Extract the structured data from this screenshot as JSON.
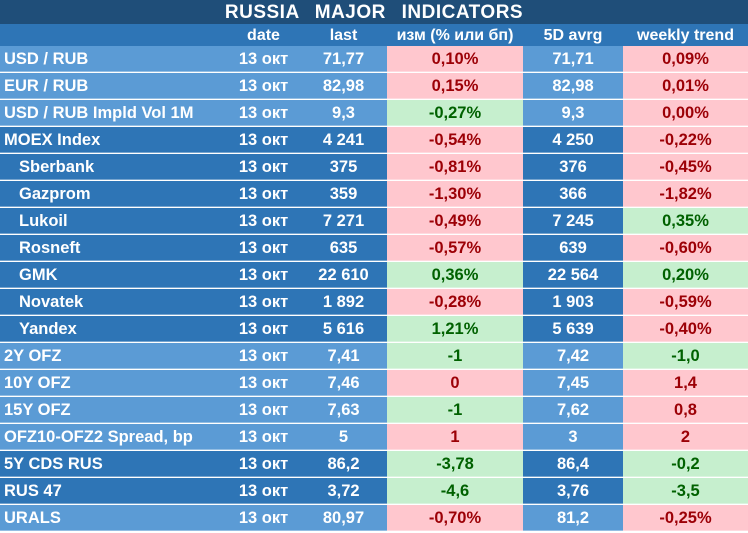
{
  "title": "RUSSIA MAJOR INDICATORS",
  "headers": [
    "date",
    "last",
    "изм (% или бп)",
    "5D avrg",
    "weekly trend"
  ],
  "colors": {
    "title_bg": "#1f4e79",
    "header_bg": "#2e75b6",
    "light_blue": "#5b9bd5",
    "dark_blue": "#2e75b6",
    "positive_bg": "#c6efce",
    "positive_text": "#006100",
    "negative_bg": "#ffc7ce",
    "negative_text": "#9c0006"
  },
  "groups": [
    {
      "shade": "light",
      "rows": [
        {
          "label": "USD / RUB",
          "date": "13 окт",
          "last": "71,77",
          "change": "0,10%",
          "change_sign": "neg",
          "avg": "71,71",
          "trend": "0,09%",
          "trend_sign": "neg"
        },
        {
          "label": "EUR / RUB",
          "date": "13 окт",
          "last": "82,98",
          "change": "0,15%",
          "change_sign": "neg",
          "avg": "82,98",
          "trend": "0,01%",
          "trend_sign": "neg"
        },
        {
          "label": "USD / RUB Impld Vol 1M",
          "date": "13 окт",
          "last": "9,3",
          "change": "-0,27%",
          "change_sign": "pos",
          "avg": "9,3",
          "trend": "0,00%",
          "trend_sign": "neg"
        }
      ]
    },
    {
      "shade": "dark",
      "rows": [
        {
          "label": "MOEX Index",
          "date": "13 окт",
          "last": "4 241",
          "change": "-0,54%",
          "change_sign": "neg",
          "avg": "4 250",
          "trend": "-0,22%",
          "trend_sign": "neg"
        },
        {
          "label": "Sberbank",
          "indent": true,
          "date": "13 окт",
          "last": "375",
          "change": "-0,81%",
          "change_sign": "neg",
          "avg": "376",
          "trend": "-0,45%",
          "trend_sign": "neg"
        },
        {
          "label": "Gazprom",
          "indent": true,
          "date": "13 окт",
          "last": "359",
          "change": "-1,30%",
          "change_sign": "neg",
          "avg": "366",
          "trend": "-1,82%",
          "trend_sign": "neg"
        },
        {
          "label": "Lukoil",
          "indent": true,
          "date": "13 окт",
          "last": "7 271",
          "change": "-0,49%",
          "change_sign": "neg",
          "avg": "7 245",
          "trend": "0,35%",
          "trend_sign": "pos"
        },
        {
          "label": "Rosneft",
          "indent": true,
          "date": "13 окт",
          "last": "635",
          "change": "-0,57%",
          "change_sign": "neg",
          "avg": "639",
          "trend": "-0,60%",
          "trend_sign": "neg"
        },
        {
          "label": "GMK",
          "indent": true,
          "date": "13 окт",
          "last": "22 610",
          "change": "0,36%",
          "change_sign": "pos",
          "avg": "22 564",
          "trend": "0,20%",
          "trend_sign": "pos"
        },
        {
          "label": "Novatek",
          "indent": true,
          "date": "13 окт",
          "last": "1 892",
          "change": "-0,28%",
          "change_sign": "neg",
          "avg": "1 903",
          "trend": "-0,59%",
          "trend_sign": "neg"
        },
        {
          "label": "Yandex",
          "indent": true,
          "date": "13 окт",
          "last": "5 616",
          "change": "1,21%",
          "change_sign": "pos",
          "avg": "5 639",
          "trend": "-0,40%",
          "trend_sign": "neg"
        }
      ]
    },
    {
      "shade": "light",
      "rows": [
        {
          "label": "2Y OFZ",
          "date": "13 окт",
          "last": "7,41",
          "change": "-1",
          "change_sign": "pos",
          "avg": "7,42",
          "trend": "-1,0",
          "trend_sign": "pos"
        },
        {
          "label": "10Y OFZ",
          "date": "13 окт",
          "last": "7,46",
          "change": "0",
          "change_sign": "neg",
          "avg": "7,45",
          "trend": "1,4",
          "trend_sign": "neg"
        },
        {
          "label": "15Y OFZ",
          "date": "13 окт",
          "last": "7,63",
          "change": "-1",
          "change_sign": "pos",
          "avg": "7,62",
          "trend": "0,8",
          "trend_sign": "neg"
        },
        {
          "label": "OFZ10-OFZ2 Spread, bp",
          "date": "13 окт",
          "last": "5",
          "change": "1",
          "change_sign": "neg",
          "avg": "3",
          "trend": "2",
          "trend_sign": "neg"
        }
      ]
    },
    {
      "shade": "dark",
      "rows": [
        {
          "label": "5Y CDS RUS",
          "date": "13 окт",
          "last": "86,2",
          "change": "-3,78",
          "change_sign": "pos",
          "avg": "86,4",
          "trend": "-0,2",
          "trend_sign": "pos"
        },
        {
          "label": "RUS 47",
          "date": "13 окт",
          "last": "3,72",
          "change": "-4,6",
          "change_sign": "pos",
          "avg": "3,76",
          "trend": "-3,5",
          "trend_sign": "pos"
        }
      ]
    },
    {
      "shade": "light",
      "rows": [
        {
          "label": "URALS",
          "date": "13 окт",
          "last": "80,97",
          "change": "-0,70%",
          "change_sign": "neg",
          "avg": "81,2",
          "trend": "-0,25%",
          "trend_sign": "neg"
        }
      ]
    }
  ]
}
